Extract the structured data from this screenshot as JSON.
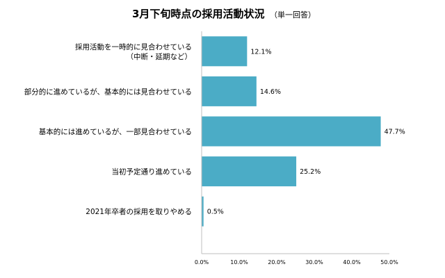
{
  "chart_data": {
    "type": "bar",
    "orientation": "horizontal",
    "title": "3月下旬時点の採用活動状況",
    "subtitle": "（単一回答）",
    "categories": [
      [
        "採用活動を一時的に見合わせている",
        "（中断・延期など）"
      ],
      [
        "部分的に進めているが、基本的には見合わせている"
      ],
      [
        "基本的には進めているが、一部見合わせている"
      ],
      [
        "当初予定通り進めている"
      ],
      [
        "2021年卒者の採用を取りやめる"
      ]
    ],
    "values": [
      12.1,
      14.6,
      47.7,
      25.2,
      0.5
    ],
    "value_labels": [
      "12.1%",
      "14.6%",
      "47.7%",
      "25.2%",
      "0.5%"
    ],
    "xlim": [
      0,
      50
    ],
    "xticks": [
      "0.0%",
      "10.0%",
      "20.0%",
      "30.0%",
      "40.0%",
      "50.0%"
    ],
    "xtick_values": [
      0,
      10,
      20,
      30,
      40,
      50
    ],
    "bar_color": "#4bacc6",
    "grid": false,
    "legend": "none"
  }
}
